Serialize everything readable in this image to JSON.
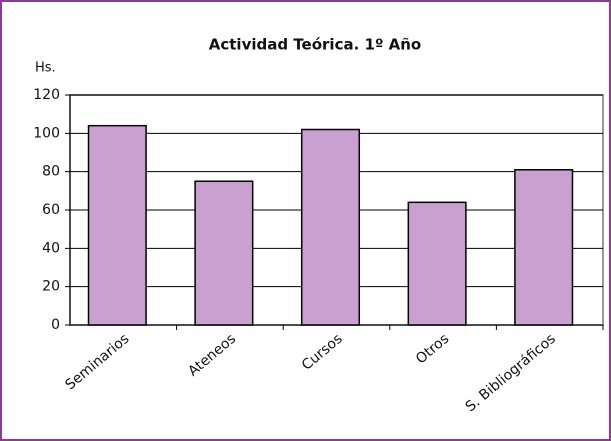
{
  "chart_data": {
    "type": "bar",
    "title": "Actividad Teórica. 1º Año",
    "y_label": "Hs.",
    "categories": [
      "Seminarios",
      "Ateneos",
      "Cursos",
      "Otros",
      "S. Bibliográficos"
    ],
    "values": [
      104,
      75,
      102,
      64,
      81
    ],
    "color": "#c9a0d0",
    "ylim": [
      0,
      120
    ],
    "yticks": [
      0,
      20,
      40,
      60,
      80,
      100,
      120
    ],
    "grid": true
  }
}
